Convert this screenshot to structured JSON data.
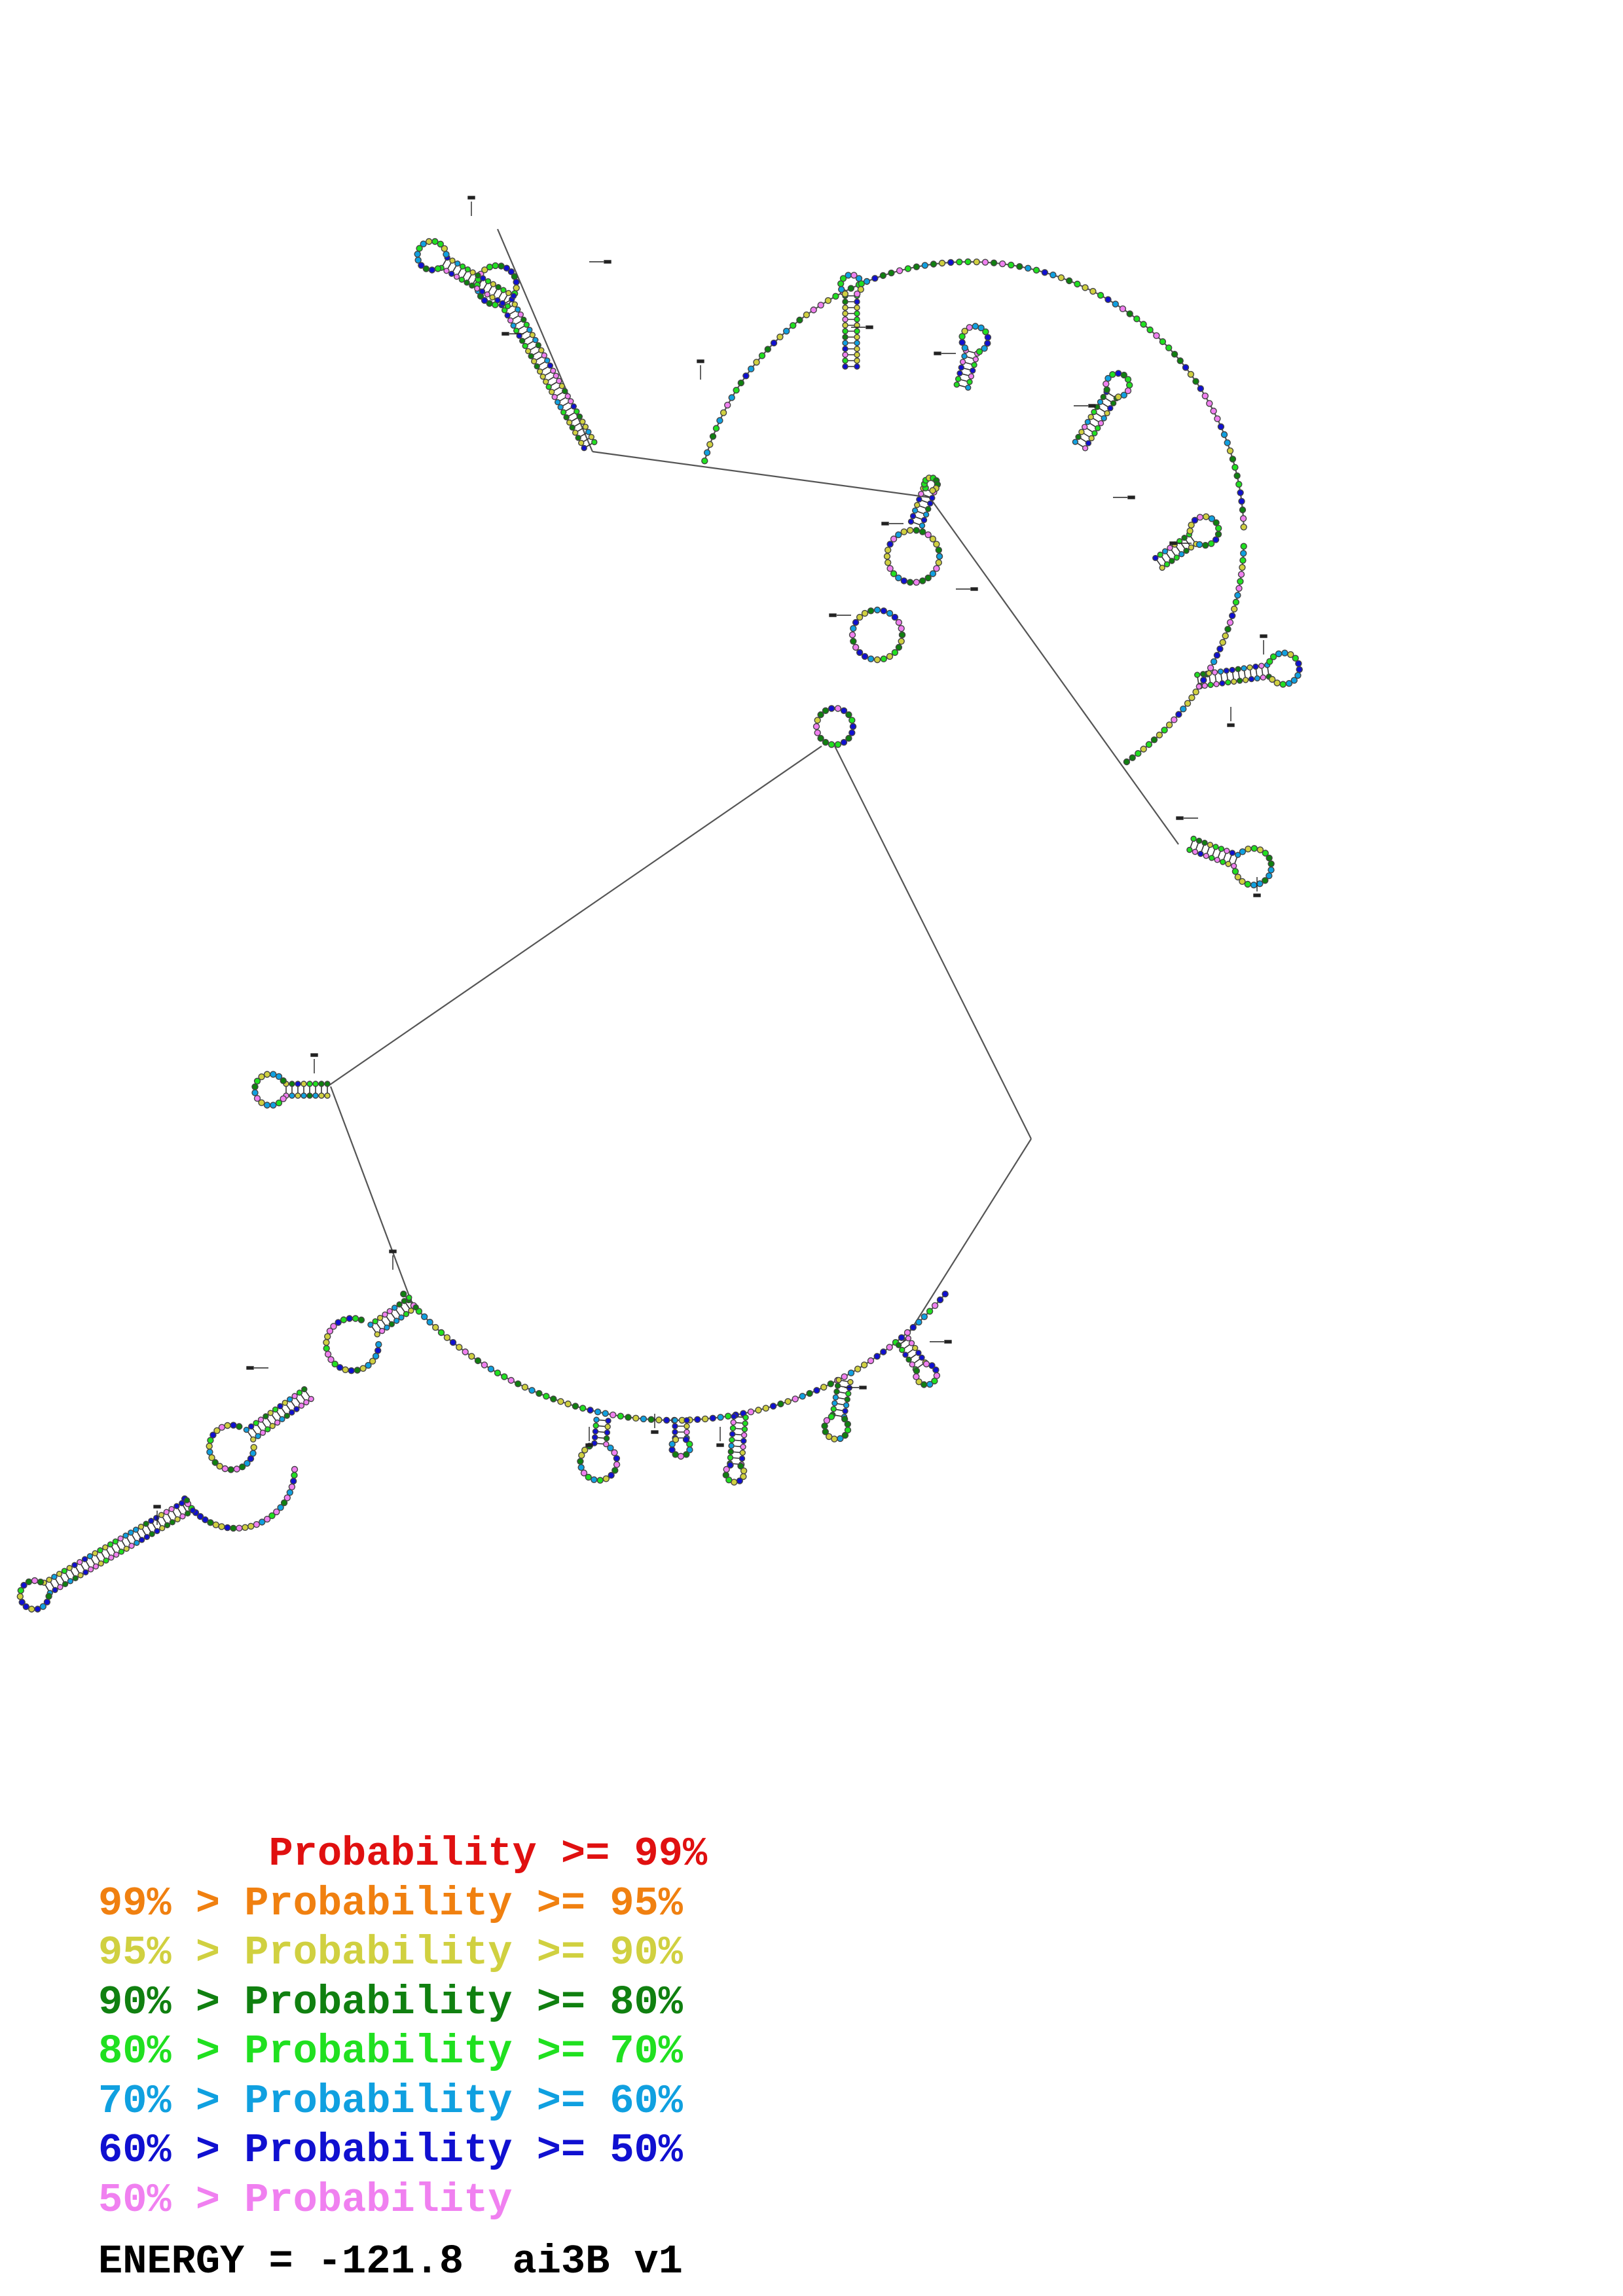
{
  "legend": {
    "colors": [
      "#e01010",
      "#f08010",
      "#d0d040",
      "#108010",
      "#20e020",
      "#10a0e0",
      "#1010d0",
      "#f080f0"
    ],
    "items": [
      {
        "text": "       Probability >= 99%",
        "color": "#e01010"
      },
      {
        "text": "99% > Probability >= 95%",
        "color": "#f08010"
      },
      {
        "text": "95% > Probability >= 90%",
        "color": "#d0d040"
      },
      {
        "text": "90% > Probability >= 80%",
        "color": "#108010"
      },
      {
        "text": "80% > Probability >= 70%",
        "color": "#20e020"
      },
      {
        "text": "70% > Probability >= 60%",
        "color": "#10a0e0"
      },
      {
        "text": "60% > Probability >= 50%",
        "color": "#1010d0"
      },
      {
        "text": "50% > Probability",
        "color": "#f080f0"
      }
    ]
  },
  "energy_text": "ENERGY = -121.8  ai3B v1",
  "structure": {
    "molecule": "ai3B v1",
    "energy": -121.8,
    "base_color_classes": [
      "#d0d040",
      "#108010",
      "#20e020",
      "#10a0e0",
      "#1010d0",
      "#f080f0"
    ]
  }
}
